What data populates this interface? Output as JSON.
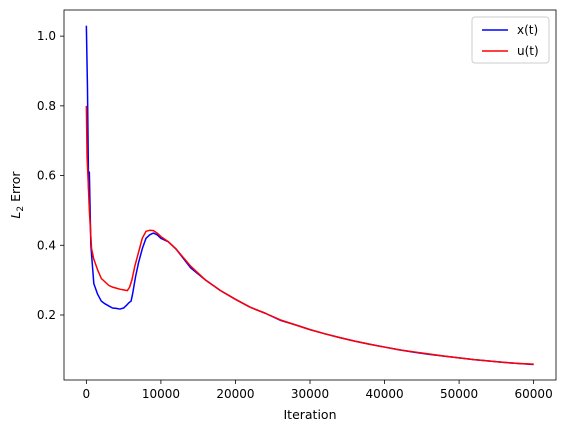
{
  "chart_data": {
    "type": "line",
    "xlabel": "Iteration",
    "ylabel": {
      "base": "L",
      "sub": "2",
      "rest": " Error"
    },
    "xlim": [
      -3000,
      63000
    ],
    "ylim": [
      0.0135,
      1.075
    ],
    "xticks": [
      0,
      10000,
      20000,
      30000,
      40000,
      50000,
      60000
    ],
    "yticks": [
      0.2,
      0.4,
      0.6,
      0.8,
      1.0
    ],
    "xtick_labels": [
      "0",
      "10000",
      "20000",
      "30000",
      "40000",
      "50000",
      "60000"
    ],
    "ytick_labels": [
      "0.2",
      "0.4",
      "0.6",
      "0.8",
      "1.0"
    ],
    "grid": false,
    "legend_position": "top-right",
    "series": [
      {
        "name": "x(t)",
        "color": "#0000ff",
        "points": [
          [
            0,
            1.03
          ],
          [
            150,
            0.85
          ],
          [
            300,
            0.56
          ],
          [
            400,
            0.61
          ],
          [
            600,
            0.4
          ],
          [
            1000,
            0.29
          ],
          [
            1500,
            0.26
          ],
          [
            2000,
            0.24
          ],
          [
            2500,
            0.232
          ],
          [
            3000,
            0.226
          ],
          [
            3500,
            0.22
          ],
          [
            4000,
            0.219
          ],
          [
            4500,
            0.217
          ],
          [
            5000,
            0.22
          ],
          [
            5400,
            0.228
          ],
          [
            5700,
            0.235
          ],
          [
            6000,
            0.24
          ],
          [
            6200,
            0.26
          ],
          [
            6600,
            0.31
          ],
          [
            7000,
            0.35
          ],
          [
            7500,
            0.39
          ],
          [
            8000,
            0.42
          ],
          [
            8500,
            0.43
          ],
          [
            9000,
            0.435
          ],
          [
            9500,
            0.43
          ],
          [
            10000,
            0.42
          ],
          [
            11000,
            0.41
          ],
          [
            12000,
            0.39
          ],
          [
            14000,
            0.335
          ],
          [
            16000,
            0.3
          ],
          [
            18000,
            0.27
          ],
          [
            20000,
            0.245
          ],
          [
            22000,
            0.222
          ],
          [
            24000,
            0.205
          ],
          [
            26000,
            0.185
          ],
          [
            28000,
            0.172
          ],
          [
            30000,
            0.158
          ],
          [
            32000,
            0.146
          ],
          [
            34000,
            0.135
          ],
          [
            36000,
            0.125
          ],
          [
            38000,
            0.116
          ],
          [
            40000,
            0.108
          ],
          [
            42000,
            0.1
          ],
          [
            44000,
            0.093
          ],
          [
            46000,
            0.087
          ],
          [
            48000,
            0.082
          ],
          [
            50000,
            0.077
          ],
          [
            52000,
            0.072
          ],
          [
            54000,
            0.068
          ],
          [
            56000,
            0.064
          ],
          [
            58000,
            0.061
          ],
          [
            60000,
            0.058
          ]
        ]
      },
      {
        "name": "u(t)",
        "color": "#ff0000",
        "points": [
          [
            0,
            0.8
          ],
          [
            100,
            0.65
          ],
          [
            250,
            0.58
          ],
          [
            400,
            0.5
          ],
          [
            700,
            0.39
          ],
          [
            1000,
            0.36
          ],
          [
            1500,
            0.33
          ],
          [
            2000,
            0.305
          ],
          [
            2500,
            0.295
          ],
          [
            3000,
            0.285
          ],
          [
            3500,
            0.28
          ],
          [
            4000,
            0.277
          ],
          [
            4500,
            0.274
          ],
          [
            5000,
            0.272
          ],
          [
            5500,
            0.27
          ],
          [
            5800,
            0.28
          ],
          [
            6100,
            0.3
          ],
          [
            6500,
            0.34
          ],
          [
            7000,
            0.38
          ],
          [
            7500,
            0.42
          ],
          [
            8000,
            0.44
          ],
          [
            8500,
            0.443
          ],
          [
            9000,
            0.442
          ],
          [
            9500,
            0.435
          ],
          [
            10000,
            0.425
          ],
          [
            11000,
            0.41
          ],
          [
            12000,
            0.39
          ],
          [
            14000,
            0.34
          ],
          [
            16000,
            0.3
          ],
          [
            18000,
            0.27
          ],
          [
            20000,
            0.245
          ],
          [
            22000,
            0.222
          ],
          [
            24000,
            0.205
          ],
          [
            26000,
            0.186
          ],
          [
            28000,
            0.172
          ],
          [
            30000,
            0.158
          ],
          [
            32000,
            0.146
          ],
          [
            34000,
            0.135
          ],
          [
            36000,
            0.125
          ],
          [
            38000,
            0.116
          ],
          [
            40000,
            0.108
          ],
          [
            42000,
            0.1
          ],
          [
            44000,
            0.094
          ],
          [
            46000,
            0.088
          ],
          [
            48000,
            0.082
          ],
          [
            50000,
            0.077
          ],
          [
            52000,
            0.072
          ],
          [
            54000,
            0.068
          ],
          [
            56000,
            0.064
          ],
          [
            58000,
            0.061
          ],
          [
            60000,
            0.059
          ]
        ]
      }
    ]
  }
}
